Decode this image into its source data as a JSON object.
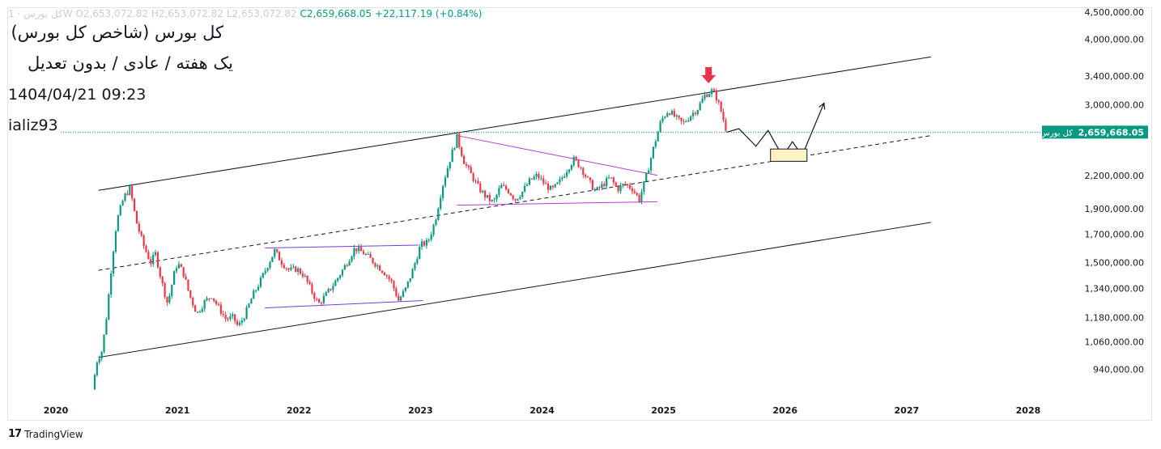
{
  "header": {
    "symbol_line": "کل بورس · 1W",
    "open": "O2,653,072.82",
    "high": "H2,653,072.82",
    "low": "L2,653,072.82",
    "close": "C2,659,668.05",
    "change": "+22,117.19 (+0.84%)"
  },
  "notes": {
    "title": "کل بورس (شاخص کل بورس)",
    "subtitle": "یک هفته / عادی / بدون تعدیل",
    "datetime": "1404/04/21 09:23",
    "author": "ializ93"
  },
  "price_tag": {
    "name": "کل بورس",
    "value": "2,659,668.05"
  },
  "footer": {
    "brand": "TradingView"
  },
  "colors": {
    "up": "#089981",
    "down": "#f23645",
    "triangle": "#b23bd6",
    "range": "#7b3bd6",
    "target_box": "#fff3c4"
  },
  "chart_data": {
    "type": "candlestick",
    "scale": "log",
    "ylim": [
      840000,
      4600000
    ],
    "xlim": [
      2019.6,
      2028.4
    ],
    "y_ticks": [
      {
        "value": 4500000,
        "label": "4,500,000.00"
      },
      {
        "value": 4000000,
        "label": "4,000,000.00"
      },
      {
        "value": 3400000,
        "label": "3,400,000.00"
      },
      {
        "value": 3000000,
        "label": "3,000,000.00"
      },
      {
        "value": 2200000,
        "label": "2,200,000.00"
      },
      {
        "value": 1900000,
        "label": "1,900,000.00"
      },
      {
        "value": 1700000,
        "label": "1,700,000.00"
      },
      {
        "value": 1500000,
        "label": "1,500,000.00"
      },
      {
        "value": 1340000,
        "label": "1,340,000.00"
      },
      {
        "value": 1180000,
        "label": "1,180,000.00"
      },
      {
        "value": 1060000,
        "label": "1,060,000.00"
      },
      {
        "value": 940000,
        "label": "940,000.00"
      }
    ],
    "x_ticks": [
      {
        "value": 2020,
        "label": "2020"
      },
      {
        "value": 2021,
        "label": "2021"
      },
      {
        "value": 2022,
        "label": "2022"
      },
      {
        "value": 2023,
        "label": "2023"
      },
      {
        "value": 2024,
        "label": "2024"
      },
      {
        "value": 2025,
        "label": "2025"
      },
      {
        "value": 2026,
        "label": "2026"
      },
      {
        "value": 2027,
        "label": "2027"
      },
      {
        "value": 2028,
        "label": "2028"
      }
    ],
    "last_price": 2659668.05,
    "path": [
      [
        2020.3,
        860000
      ],
      [
        2020.34,
        980000
      ],
      [
        2020.38,
        1020000
      ],
      [
        2020.42,
        1200000
      ],
      [
        2020.46,
        1500000
      ],
      [
        2020.5,
        1800000
      ],
      [
        2020.56,
        2000000
      ],
      [
        2020.61,
        2080000
      ],
      [
        2020.66,
        1800000
      ],
      [
        2020.72,
        1620000
      ],
      [
        2020.78,
        1500000
      ],
      [
        2020.82,
        1560000
      ],
      [
        2020.87,
        1380000
      ],
      [
        2020.92,
        1250000
      ],
      [
        2020.97,
        1420000
      ],
      [
        2021.0,
        1500000
      ],
      [
        2021.05,
        1430000
      ],
      [
        2021.1,
        1300000
      ],
      [
        2021.16,
        1200000
      ],
      [
        2021.22,
        1260000
      ],
      [
        2021.28,
        1300000
      ],
      [
        2021.34,
        1230000
      ],
      [
        2021.4,
        1170000
      ],
      [
        2021.46,
        1180000
      ],
      [
        2021.5,
        1130000
      ],
      [
        2021.56,
        1200000
      ],
      [
        2021.62,
        1300000
      ],
      [
        2021.68,
        1380000
      ],
      [
        2021.74,
        1480000
      ],
      [
        2021.8,
        1580000
      ],
      [
        2021.86,
        1500000
      ],
      [
        2021.92,
        1450000
      ],
      [
        2021.98,
        1460000
      ],
      [
        2022.04,
        1420000
      ],
      [
        2022.1,
        1330000
      ],
      [
        2022.16,
        1250000
      ],
      [
        2022.22,
        1300000
      ],
      [
        2022.3,
        1380000
      ],
      [
        2022.38,
        1480000
      ],
      [
        2022.46,
        1600000
      ],
      [
        2022.54,
        1560000
      ],
      [
        2022.62,
        1500000
      ],
      [
        2022.7,
        1440000
      ],
      [
        2022.76,
        1380000
      ],
      [
        2022.82,
        1270000
      ],
      [
        2022.88,
        1340000
      ],
      [
        2022.94,
        1460000
      ],
      [
        2023.0,
        1620000
      ],
      [
        2023.06,
        1640000
      ],
      [
        2023.12,
        1800000
      ],
      [
        2023.18,
        2100000
      ],
      [
        2023.24,
        2350000
      ],
      [
        2023.3,
        2600000
      ],
      [
        2023.36,
        2330000
      ],
      [
        2023.42,
        2200000
      ],
      [
        2023.48,
        2080000
      ],
      [
        2023.54,
        2000000
      ],
      [
        2023.6,
        1950000
      ],
      [
        2023.66,
        2100000
      ],
      [
        2023.72,
        2060000
      ],
      [
        2023.78,
        1980000
      ],
      [
        2023.84,
        2050000
      ],
      [
        2023.9,
        2150000
      ],
      [
        2023.96,
        2200000
      ],
      [
        2024.02,
        2120000
      ],
      [
        2024.08,
        2060000
      ],
      [
        2024.14,
        2130000
      ],
      [
        2024.2,
        2250000
      ],
      [
        2024.26,
        2360000
      ],
      [
        2024.32,
        2280000
      ],
      [
        2024.38,
        2150000
      ],
      [
        2024.44,
        2050000
      ],
      [
        2024.5,
        2110000
      ],
      [
        2024.56,
        2180000
      ],
      [
        2024.62,
        2070000
      ],
      [
        2024.68,
        2120000
      ],
      [
        2024.74,
        2080000
      ],
      [
        2024.8,
        1980000
      ],
      [
        2024.86,
        2200000
      ],
      [
        2024.92,
        2500000
      ],
      [
        2024.98,
        2800000
      ],
      [
        2025.04,
        2930000
      ],
      [
        2025.1,
        2830000
      ],
      [
        2025.16,
        2760000
      ],
      [
        2025.22,
        2860000
      ],
      [
        2025.28,
        2950000
      ],
      [
        2025.34,
        3130000
      ],
      [
        2025.4,
        3190000
      ],
      [
        2025.44,
        3080000
      ],
      [
        2025.48,
        2880000
      ],
      [
        2025.52,
        2659668
      ]
    ],
    "channel": {
      "upper": [
        [
          2020.35,
          2060000
        ],
        [
          2027.2,
          3700000
        ]
      ],
      "middle": [
        [
          2020.35,
          1450000
        ],
        [
          2027.2,
          2620000
        ]
      ],
      "lower": [
        [
          2020.35,
          990000
        ],
        [
          2027.2,
          1790000
        ]
      ]
    },
    "triangle": {
      "top": [
        [
          2023.3,
          2620000
        ],
        [
          2024.95,
          2200000
        ]
      ],
      "bottom": [
        [
          2023.3,
          1930000
        ],
        [
          2024.95,
          1960000
        ]
      ]
    },
    "range": {
      "top": [
        [
          2021.72,
          1600000
        ],
        [
          2022.98,
          1620000
        ]
      ],
      "bottom": [
        [
          2021.72,
          1230000
        ],
        [
          2023.02,
          1270000
        ]
      ]
    },
    "projection": [
      [
        2025.52,
        2659668
      ],
      [
        2025.62,
        2700000
      ],
      [
        2025.76,
        2500000
      ],
      [
        2025.86,
        2680000
      ],
      [
        2025.98,
        2390000
      ],
      [
        2026.06,
        2550000
      ],
      [
        2026.14,
        2400000
      ],
      [
        2026.32,
        3020000
      ]
    ],
    "target_zone": {
      "x": [
        2025.88,
        2026.18
      ],
      "y": [
        2340000,
        2470000
      ]
    },
    "signal_arrow": {
      "x": 2025.37,
      "y": 3320000,
      "direction": "down"
    }
  }
}
